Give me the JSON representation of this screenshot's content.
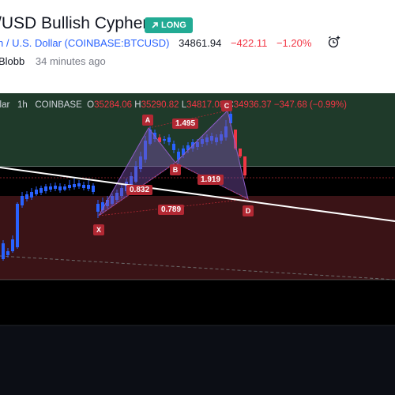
{
  "header": {
    "title": "/USD Bullish Cypher",
    "badge": "LONG",
    "symbol_text": "n / U.S. Dollar",
    "exchange_symbol": "(COINBASE:BTCUSD)",
    "price": "34861.94",
    "change": "−422.11",
    "change_pct": "−1.20%",
    "author": "Blobb",
    "time_ago": "34 minutes ago",
    "icon": "alarm-clock-add-icon"
  },
  "legend": {
    "title": "llar",
    "interval": "1h",
    "exchange": "COINBASE",
    "o_label": "O",
    "o_value": "35284.06",
    "h_label": "H",
    "h_value": "35290.82",
    "l_label": "L",
    "l_value": "34817.08",
    "c_label": "C",
    "c_value": "34936.37",
    "chg": "−347.68",
    "chg_pct": "(−0.99%)"
  },
  "pattern": {
    "points": {
      "x": "X",
      "a": "A",
      "b": "B",
      "c": "C",
      "d": "D"
    },
    "ratios": {
      "ab": "0.832",
      "bc": "1.495",
      "cd": "1.919",
      "xd": "0.789"
    }
  },
  "colors": {
    "up": "#2962ff",
    "down": "#f23645",
    "pattern_fill": "#7b4fa8",
    "label_bg": "#b22833",
    "long_badge": "#22ab94",
    "target_zone": "#1f3a2a",
    "stop_zone": "#3a1316"
  }
}
